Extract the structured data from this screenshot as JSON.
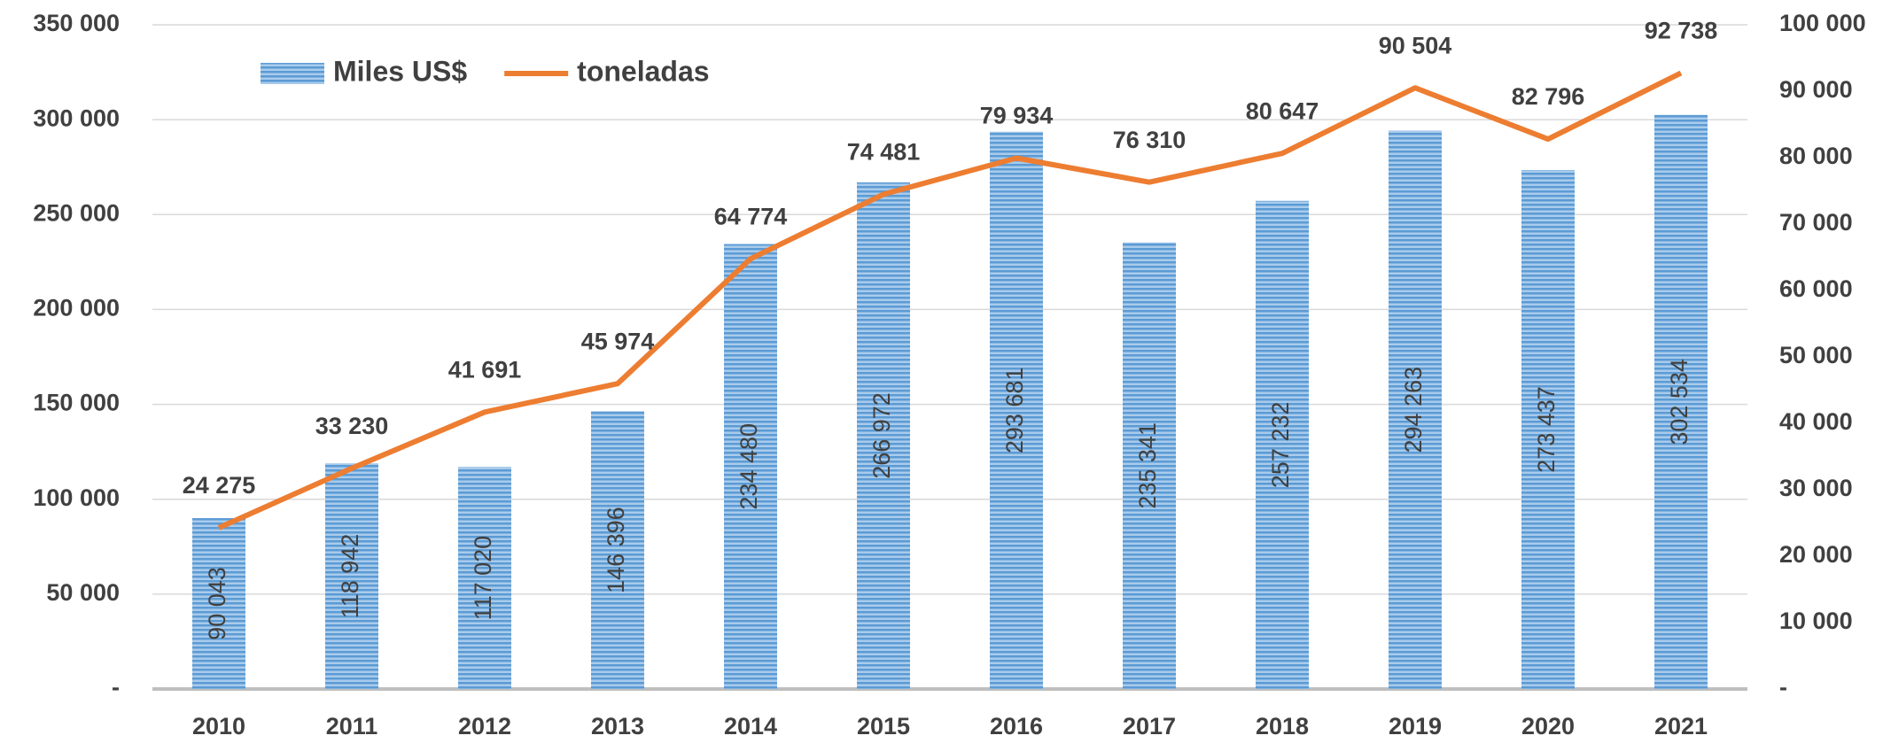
{
  "chart_data": {
    "type": "bar_line",
    "categories": [
      "2010",
      "2011",
      "2012",
      "2013",
      "2014",
      "2015",
      "2016",
      "2017",
      "2018",
      "2019",
      "2020",
      "2021"
    ],
    "series": [
      {
        "name": "Miles US$",
        "type": "bar",
        "color": "#5b9bd5",
        "values": [
          90043,
          118942,
          117020,
          146396,
          234480,
          266972,
          293681,
          235341,
          257232,
          294263,
          273437,
          302534
        ],
        "value_labels": [
          "90 043",
          "118 942",
          "117 020",
          "146 396",
          "234 480",
          "266 972",
          "293 681",
          "235 341",
          "257 232",
          "294 263",
          "273 437",
          "302 534"
        ]
      },
      {
        "name": "toneladas",
        "type": "line",
        "axis": "y2",
        "color": "#ed7d31",
        "values": [
          24275,
          33230,
          41691,
          45974,
          64774,
          74481,
          79934,
          76310,
          80647,
          90504,
          82796,
          92738
        ],
        "value_labels": [
          "24 275",
          "33 230",
          "41 691",
          "45 974",
          "64 774",
          "74 481",
          "79 934",
          "76 310",
          "80 647",
          "90 504",
          "82 796",
          "92 738"
        ]
      }
    ],
    "ylim": [
      0,
      350000
    ],
    "yticks": [
      {
        "value": 0,
        "label": "-"
      },
      {
        "value": 50000,
        "label": "50 000"
      },
      {
        "value": 100000,
        "label": "100 000"
      },
      {
        "value": 150000,
        "label": "150 000"
      },
      {
        "value": 200000,
        "label": "200 000"
      },
      {
        "value": 250000,
        "label": "250 000"
      },
      {
        "value": 300000,
        "label": "300 000"
      },
      {
        "value": 350000,
        "label": "350 000"
      }
    ],
    "y2lim": [
      0,
      100000
    ],
    "y2ticks": [
      {
        "value": 0,
        "label": "-"
      },
      {
        "value": 10000,
        "label": "10 000"
      },
      {
        "value": 20000,
        "label": "20 000"
      },
      {
        "value": 30000,
        "label": "30 000"
      },
      {
        "value": 40000,
        "label": "40 000"
      },
      {
        "value": 50000,
        "label": "50 000"
      },
      {
        "value": 60000,
        "label": "60 000"
      },
      {
        "value": 70000,
        "label": "70 000"
      },
      {
        "value": 80000,
        "label": "80 000"
      },
      {
        "value": 90000,
        "label": "90 000"
      },
      {
        "value": 100000,
        "label": "100 000"
      }
    ],
    "grid": true,
    "legend": "top-left"
  }
}
